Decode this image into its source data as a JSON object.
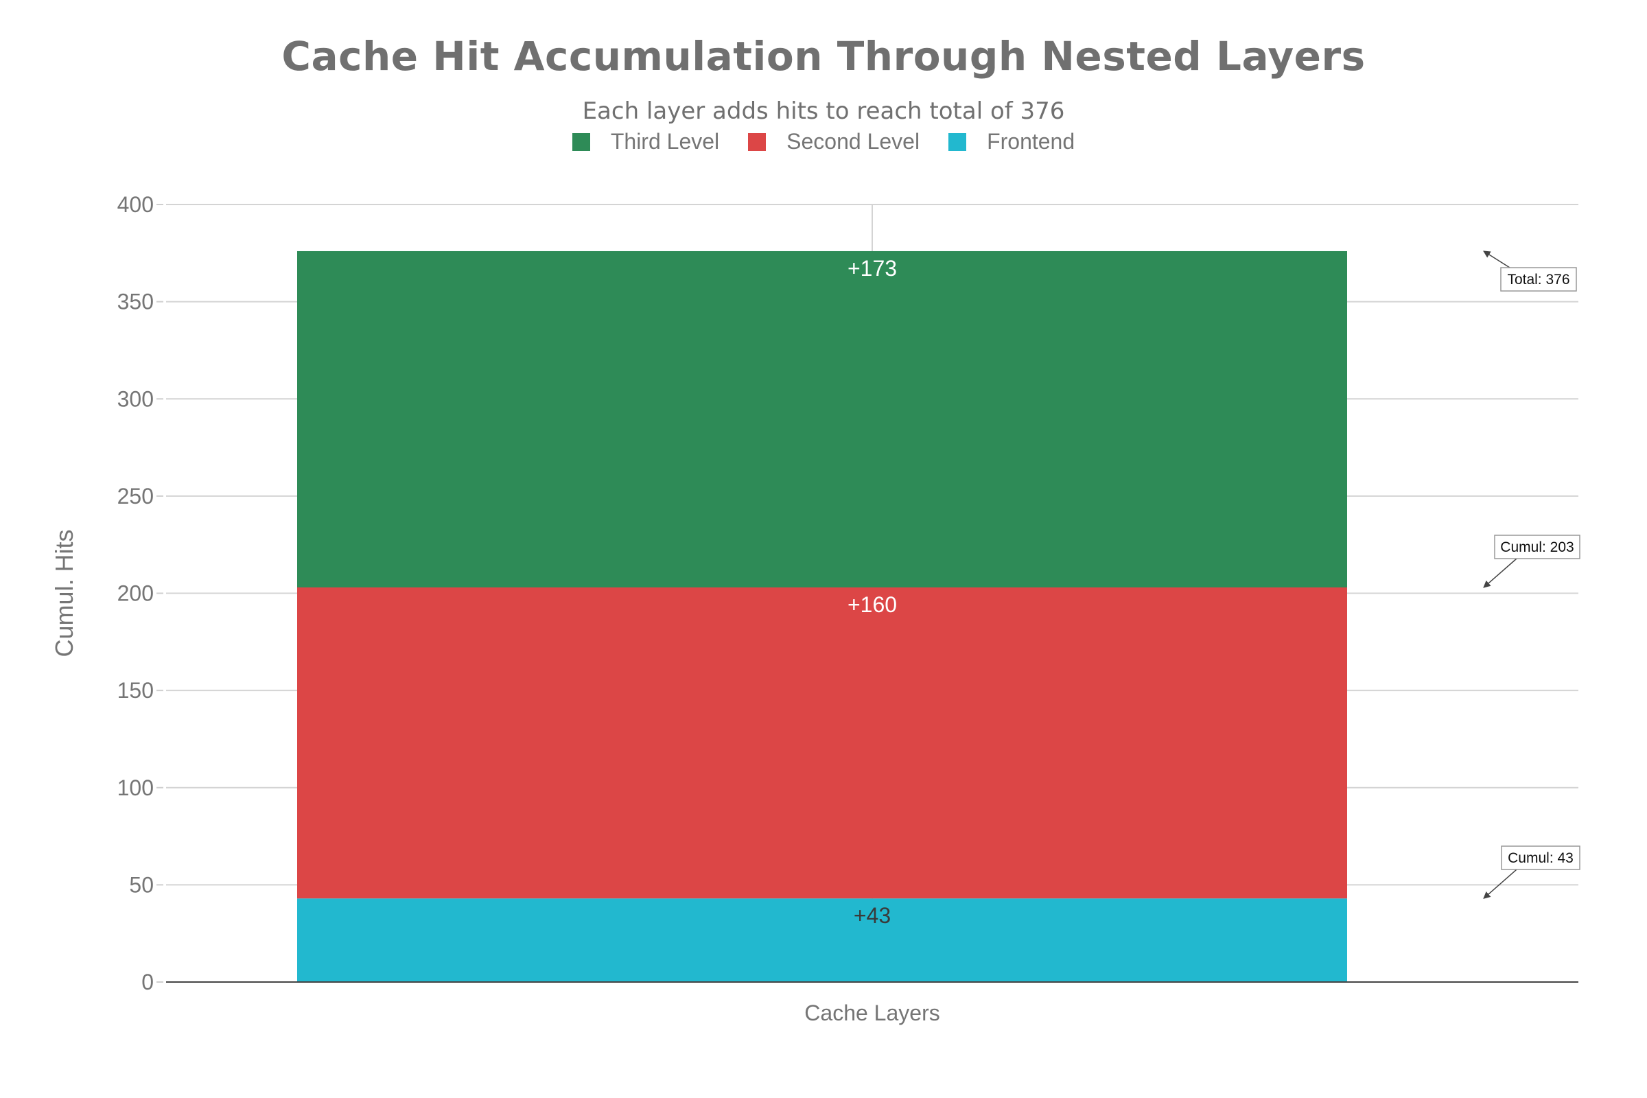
{
  "title": "Cache Hit Accumulation Through Nested Layers",
  "subtitle": "Each layer adds hits to reach total of 376",
  "legend": [
    {
      "label": "Third Level",
      "color": "#2e8b57"
    },
    {
      "label": "Second Level",
      "color": "#dc4646"
    },
    {
      "label": "Frontend",
      "color": "#22b8cf"
    }
  ],
  "chart_data": {
    "type": "bar",
    "stacked": true,
    "categories": [
      "Cache Layers"
    ],
    "series": [
      {
        "name": "Frontend",
        "values": [
          43
        ],
        "color": "#22b8cf",
        "label": "+43",
        "label_color": "#3a3a3a"
      },
      {
        "name": "Second Level",
        "values": [
          160
        ],
        "color": "#dc4646",
        "label": "+160",
        "label_color": "#ffffff"
      },
      {
        "name": "Third Level",
        "values": [
          173
        ],
        "color": "#2e8b57",
        "label": "+173",
        "label_color": "#ffffff"
      }
    ],
    "ylabel": "Cumul. Hits",
    "xlabel": "",
    "ylim": [
      0,
      400
    ],
    "yticks": [
      0,
      50,
      100,
      150,
      200,
      250,
      300,
      350,
      400
    ],
    "grid": true,
    "legend_position": "top-center",
    "annotations": [
      {
        "text": "Cumul: 43",
        "value": 43
      },
      {
        "text": "Cumul: 203",
        "value": 203
      },
      {
        "text": "Total: 376",
        "value": 376
      }
    ]
  }
}
